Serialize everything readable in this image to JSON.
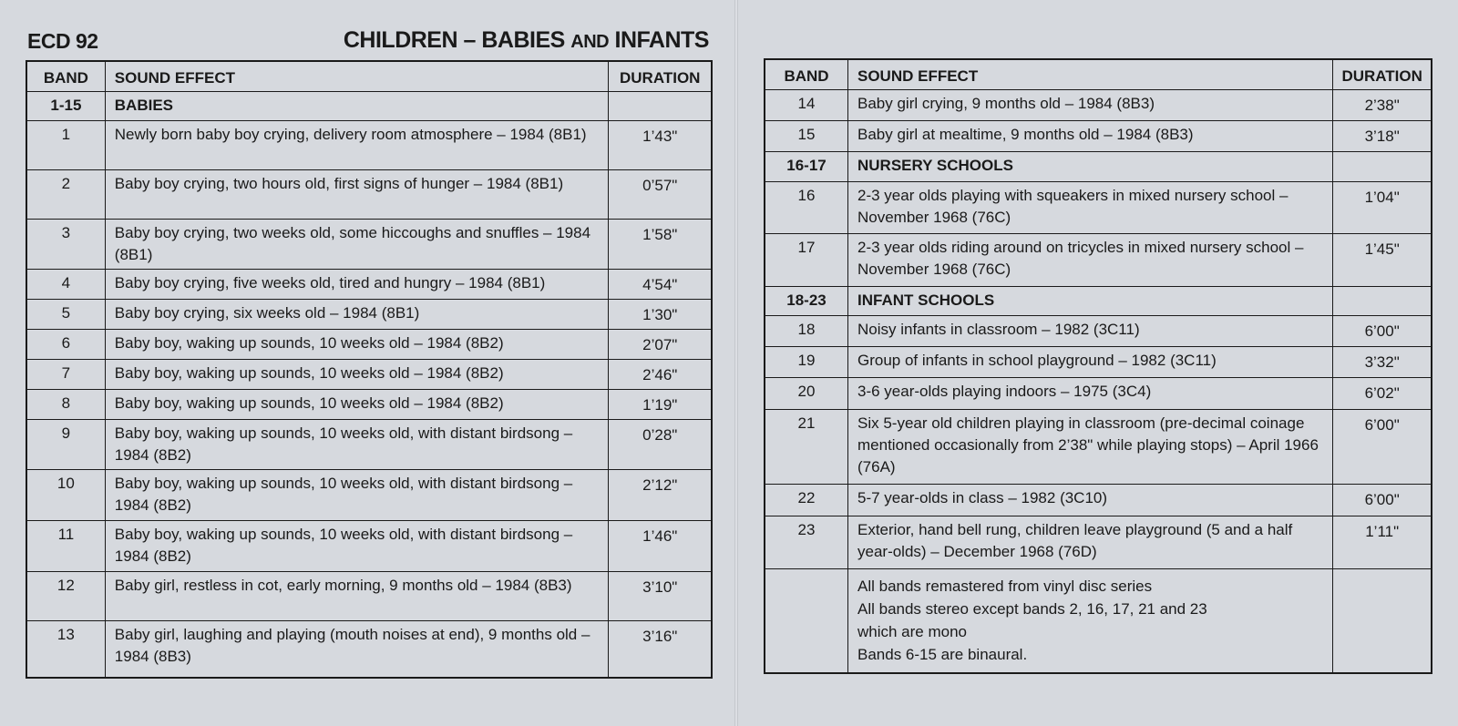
{
  "header": {
    "catalog_id": "ECD 92",
    "title_main": "CHILDREN – BABIES ",
    "title_small": "AND",
    "title_end": " INFANTS"
  },
  "columns": {
    "band": "BAND",
    "effect": "SOUND EFFECT",
    "duration": "DURATION"
  },
  "left_rows": [
    {
      "band": "1-15",
      "effect": "BABIES",
      "duration": "",
      "section": true
    },
    {
      "band": "1",
      "effect": "Newly born baby boy crying, delivery room atmosphere – 1984 (8B1)",
      "duration": "1’43\""
    },
    {
      "band": "2",
      "effect": "Baby boy crying, two hours old, first signs of hunger – 1984 (8B1)",
      "duration": "0’57\""
    },
    {
      "band": "3",
      "effect": "Baby boy crying, two weeks old, some hiccoughs and snuffles – 1984 (8B1)",
      "duration": "1’58\""
    },
    {
      "band": "4",
      "effect": "Baby boy crying, five weeks old, tired and hungry – 1984 (8B1)",
      "duration": "4’54\""
    },
    {
      "band": "5",
      "effect": "Baby boy crying, six weeks old – 1984 (8B1)",
      "duration": "1’30\""
    },
    {
      "band": "6",
      "effect": "Baby boy, waking up sounds, 10 weeks old – 1984 (8B2)",
      "duration": "2’07\""
    },
    {
      "band": "7",
      "effect": "Baby boy, waking up sounds, 10 weeks old – 1984 (8B2)",
      "duration": "2’46\""
    },
    {
      "band": "8",
      "effect": "Baby boy, waking up sounds, 10 weeks old – 1984 (8B2)",
      "duration": "1’19\""
    },
    {
      "band": "9",
      "effect": "Baby boy, waking up sounds, 10 weeks old, with distant birdsong – 1984 (8B2)",
      "duration": "0’28\""
    },
    {
      "band": "10",
      "effect": "Baby boy, waking up sounds, 10 weeks old, with distant birdsong – 1984 (8B2)",
      "duration": "2’12\""
    },
    {
      "band": "11",
      "effect": "Baby boy, waking up sounds, 10 weeks old, with distant birdsong – 1984 (8B2)",
      "duration": "1’46\""
    },
    {
      "band": "12",
      "effect": "Baby girl, restless in cot, early morning, 9 months old – 1984 (8B3)",
      "duration": "3’10\""
    },
    {
      "band": "13",
      "effect": "Baby girl, laughing and playing (mouth noises at end), 9 months  old – 1984 (8B3)",
      "duration": "3’16\""
    }
  ],
  "right_rows": [
    {
      "band": "14",
      "effect": "Baby girl crying, 9 months old – 1984 (8B3)",
      "duration": "2’38\""
    },
    {
      "band": "15",
      "effect": "Baby girl at mealtime, 9 months old – 1984 (8B3)",
      "duration": "3’18\""
    },
    {
      "band": "16-17",
      "effect": "NURSERY SCHOOLS",
      "duration": "",
      "section": true
    },
    {
      "band": "16",
      "effect": "2-3 year olds playing with squeakers in mixed nursery school – November 1968 (76C)",
      "duration": "1’04\""
    },
    {
      "band": "17",
      "effect": "2-3 year olds riding around on tricycles in mixed nursery school  – November 1968 (76C)",
      "duration": "1’45\""
    },
    {
      "band": "18-23",
      "effect": "INFANT SCHOOLS",
      "duration": "",
      "section": true
    },
    {
      "band": "18",
      "effect": "Noisy infants in classroom – 1982 (3C11)",
      "duration": "6’00\""
    },
    {
      "band": "19",
      "effect": "Group of infants in school playground – 1982 (3C11)",
      "duration": "3’32\""
    },
    {
      "band": "20",
      "effect": "3-6 year-olds playing indoors – 1975 (3C4)",
      "duration": "6’02\""
    },
    {
      "band": "21",
      "effect": "Six 5-year old children playing in classroom (pre-decimal coinage mentioned occasionally from 2’38\" while playing stops) – April 1966 (76A)",
      "duration": "6’00\""
    },
    {
      "band": "22",
      "effect": "5-7 year-olds in class – 1982 (3C10)",
      "duration": "6’00\""
    },
    {
      "band": "23",
      "effect": "Exterior, hand bell rung, children leave playground (5 and a half year-olds) – December 1968 (76D)",
      "duration": "1’11\""
    }
  ],
  "notes": [
    "All bands remastered from vinyl disc series",
    "All bands stereo except bands 2, 16, 17, 21 and 23",
    "which are mono",
    "Bands 6-15 are binaural."
  ]
}
